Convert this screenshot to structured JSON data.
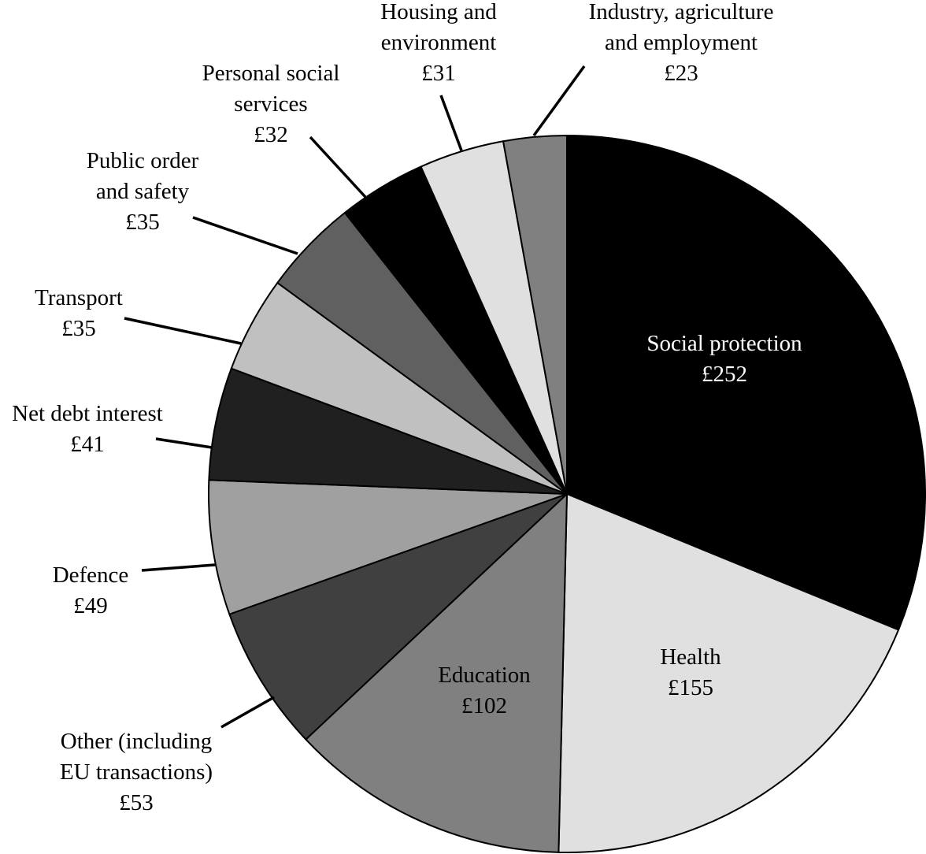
{
  "chart_data": {
    "type": "pie",
    "title": "",
    "start": "12 o'clock",
    "direction": "clockwise",
    "slices": [
      {
        "label": [
          "Social protection"
        ],
        "value": 252,
        "value_label": "£252",
        "color": "#000000",
        "label_color": "#ffffff",
        "label_placement": "inside"
      },
      {
        "label": [
          "Health"
        ],
        "value": 155,
        "value_label": "£155",
        "color": "#e0e0e0",
        "label_color": "#000000",
        "label_placement": "inside"
      },
      {
        "label": [
          "Education"
        ],
        "value": 102,
        "value_label": "£102",
        "color": "#808080",
        "label_color": "#000000",
        "label_placement": "inside"
      },
      {
        "label": [
          "Other (including",
          "EU transactions)"
        ],
        "value": 53,
        "value_label": "£53",
        "color": "#404040",
        "label_color": "#000000",
        "label_placement": "outside"
      },
      {
        "label": [
          "Defence"
        ],
        "value": 49,
        "value_label": "£49",
        "color": "#a0a0a0",
        "label_color": "#000000",
        "label_placement": "outside"
      },
      {
        "label": [
          "Net debt interest"
        ],
        "value": 41,
        "value_label": "£41",
        "color": "#202020",
        "label_color": "#000000",
        "label_placement": "outside"
      },
      {
        "label": [
          "Transport"
        ],
        "value": 35,
        "value_label": "£35",
        "color": "#c0c0c0",
        "label_color": "#000000",
        "label_placement": "outside"
      },
      {
        "label": [
          "Public order",
          "and safety"
        ],
        "value": 35,
        "value_label": "£35",
        "color": "#606060",
        "label_color": "#000000",
        "label_placement": "outside"
      },
      {
        "label": [
          "Personal social",
          "services"
        ],
        "value": 32,
        "value_label": "£32",
        "color": "#000000",
        "label_color": "#000000",
        "label_placement": "outside"
      },
      {
        "label": [
          "Housing and",
          "environment"
        ],
        "value": 31,
        "value_label": "£31",
        "color": "#e0e0e0",
        "label_color": "#000000",
        "label_placement": "outside"
      },
      {
        "label": [
          "Industry, agriculture",
          "and employment"
        ],
        "value": 23,
        "value_label": "£23",
        "color": "#808080",
        "label_color": "#000000",
        "label_placement": "outside"
      }
    ]
  }
}
